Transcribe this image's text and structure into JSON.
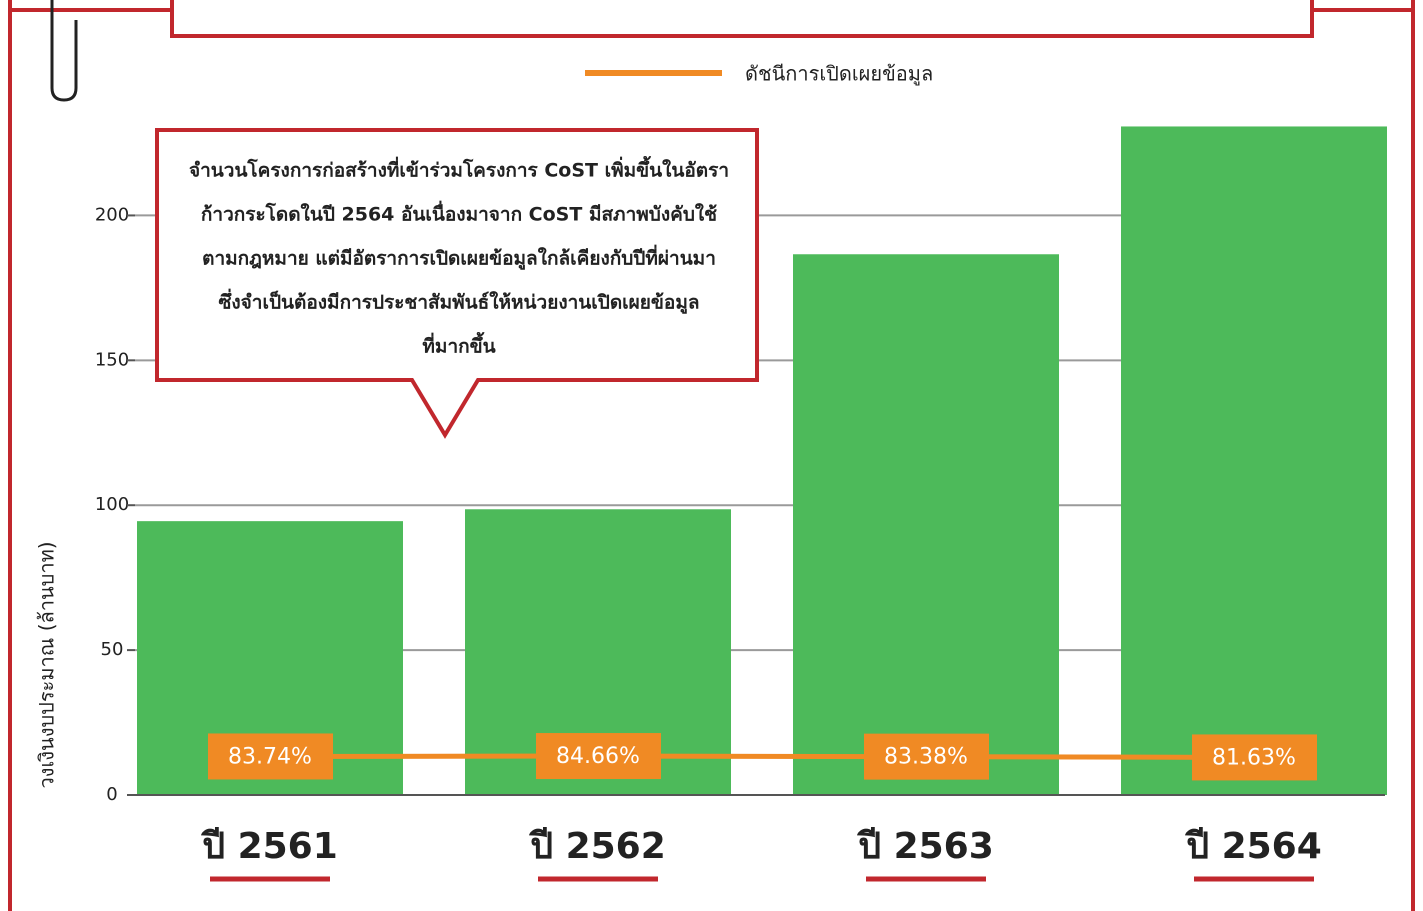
{
  "chart_data": {
    "type": "bar",
    "categories": [
      "ปี 2561",
      "ปี 2562",
      "ปี 2563",
      "ปี 2564"
    ],
    "series": [
      {
        "name": "วงเงินงบประมาณ",
        "color": "#4dba5a",
        "values": [
          94.5,
          98.6,
          186.6,
          230.7
        ]
      },
      {
        "name": "ดัชนีการเปิดเผยข้อมูล",
        "color": "#f08a24",
        "type": "line",
        "axis": "y2",
        "values": [
          83.74,
          84.66,
          83.38,
          81.63
        ],
        "value_labels": [
          "83.74%",
          "84.66%",
          "83.38%",
          "81.63%"
        ]
      }
    ],
    "ylabel": "วงเงินงบประมาณ (ล้านบาท)",
    "ylim": [
      0,
      235
    ],
    "yticks": [
      0,
      50,
      100,
      150,
      200
    ],
    "y2lim": [
      0,
      1480
    ],
    "grid": true,
    "annotation": [
      "จำนวนโครงการก่อสร้างที่เข้าร่วมโครงการ CoST เพิ่มขึ้นในอัตรา",
      "ก้าวกระโดดในปี 2564 อันเนื่องมาจาก CoST มีสภาพบังคับใช้",
      "ตามกฎหมาย แต่มีอัตราการเปิดเผยข้อมูลใกล้เคียงกับปีที่ผ่านมา",
      "ซึ่งจำเป็นต้องมีการประชาสัมพันธ์ให้หน่วยงานเปิดเผยข้อมูล",
      "ที่มากขึ้น"
    ]
  }
}
